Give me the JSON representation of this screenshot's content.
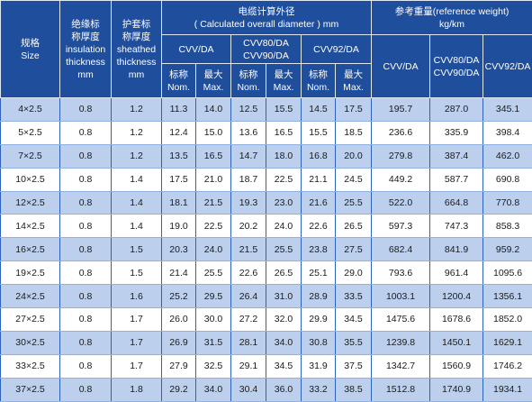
{
  "headers": {
    "size": [
      "规格",
      "Size"
    ],
    "insulation": [
      "绝缘标",
      "称厚度",
      "insulation",
      "thickness",
      "mm"
    ],
    "sheath": [
      "护套标",
      "称厚度",
      "sheathed",
      "thickness",
      "mm"
    ],
    "diameter_group": [
      "电缆计算外径",
      "( Calculated overall diameter ) mm"
    ],
    "weight_group": [
      "参考重量(reference weight)",
      "kg/km"
    ],
    "cvv_da": "CVV/DA",
    "cvv80_90": [
      "CVV80/DA",
      "CVV90/DA"
    ],
    "cvv92": "CVV92/DA",
    "nom": [
      "标称",
      "Nom."
    ],
    "max": [
      "最大",
      "Max."
    ],
    "w_cvv": "CVV/DA",
    "w_cvv80_90": [
      "CVV80/DA",
      "CVV90/DA"
    ],
    "w_cvv92": "CVV92/DA"
  },
  "rows": [
    [
      "4×2.5",
      "0.8",
      "1.2",
      "11.3",
      "14.0",
      "12.5",
      "15.5",
      "14.5",
      "17.5",
      "195.7",
      "287.0",
      "345.1"
    ],
    [
      "5×2.5",
      "0.8",
      "1.2",
      "12.4",
      "15.0",
      "13.6",
      "16.5",
      "15.5",
      "18.5",
      "236.6",
      "335.9",
      "398.4"
    ],
    [
      "7×2.5",
      "0.8",
      "1.2",
      "13.5",
      "16.5",
      "14.7",
      "18.0",
      "16.8",
      "20.0",
      "279.8",
      "387.4",
      "462.0"
    ],
    [
      "10×2.5",
      "0.8",
      "1.4",
      "17.5",
      "21.0",
      "18.7",
      "22.5",
      "21.1",
      "24.5",
      "449.2",
      "587.7",
      "690.8"
    ],
    [
      "12×2.5",
      "0.8",
      "1.4",
      "18.1",
      "21.5",
      "19.3",
      "23.0",
      "21.6",
      "25.5",
      "522.0",
      "664.8",
      "770.8"
    ],
    [
      "14×2.5",
      "0.8",
      "1.4",
      "19.0",
      "22.5",
      "20.2",
      "24.0",
      "22.6",
      "26.5",
      "597.3",
      "747.3",
      "858.3"
    ],
    [
      "16×2.5",
      "0.8",
      "1.5",
      "20.3",
      "24.0",
      "21.5",
      "25.5",
      "23.8",
      "27.5",
      "682.4",
      "841.9",
      "959.2"
    ],
    [
      "19×2.5",
      "0.8",
      "1.5",
      "21.4",
      "25.5",
      "22.6",
      "26.5",
      "25.1",
      "29.0",
      "793.6",
      "961.4",
      "1095.6"
    ],
    [
      "24×2.5",
      "0.8",
      "1.6",
      "25.2",
      "29.5",
      "26.4",
      "31.0",
      "28.9",
      "33.5",
      "1003.1",
      "1200.4",
      "1356.1"
    ],
    [
      "27×2.5",
      "0.8",
      "1.7",
      "26.0",
      "30.0",
      "27.2",
      "32.0",
      "29.9",
      "34.5",
      "1475.6",
      "1678.6",
      "1852.0"
    ],
    [
      "30×2.5",
      "0.8",
      "1.7",
      "26.9",
      "31.5",
      "28.1",
      "34.0",
      "30.8",
      "35.5",
      "1239.8",
      "1450.1",
      "1629.1"
    ],
    [
      "33×2.5",
      "0.8",
      "1.7",
      "27.9",
      "32.5",
      "29.1",
      "34.5",
      "31.9",
      "37.5",
      "1342.7",
      "1560.9",
      "1746.2"
    ],
    [
      "37×2.5",
      "0.8",
      "1.8",
      "29.2",
      "34.0",
      "30.4",
      "36.0",
      "33.2",
      "38.5",
      "1512.8",
      "1740.9",
      "1934.1"
    ]
  ]
}
